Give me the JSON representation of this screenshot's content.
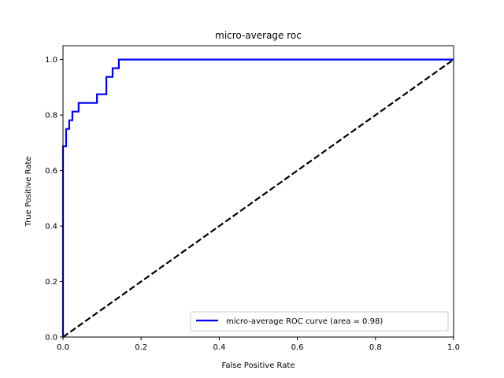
{
  "chart_data": {
    "type": "line",
    "title": "micro-average roc",
    "xlabel": "False Positive Rate",
    "ylabel": "True Positive Rate",
    "xlim": [
      0.0,
      1.0
    ],
    "ylim": [
      0.0,
      1.05
    ],
    "x_ticks": [
      0.0,
      0.2,
      0.4,
      0.6,
      0.8,
      1.0
    ],
    "x_tick_labels": [
      "0.0",
      "0.2",
      "0.4",
      "0.6",
      "0.8",
      "1.0"
    ],
    "y_ticks": [
      0.0,
      0.2,
      0.4,
      0.6,
      0.8,
      1.0
    ],
    "y_tick_labels": [
      "0.0",
      "0.2",
      "0.4",
      "0.6",
      "0.8",
      "1.0"
    ],
    "grid": false,
    "legend_position": "lower right",
    "series": [
      {
        "name": "micro-average ROC curve (area = 0.98)",
        "color": "#0000ff",
        "style": "solid",
        "points": [
          [
            0.0,
            0.0
          ],
          [
            0.0,
            0.6875
          ],
          [
            0.008,
            0.6875
          ],
          [
            0.008,
            0.75
          ],
          [
            0.016,
            0.75
          ],
          [
            0.016,
            0.78125
          ],
          [
            0.024,
            0.78125
          ],
          [
            0.024,
            0.8125
          ],
          [
            0.04,
            0.8125
          ],
          [
            0.04,
            0.84375
          ],
          [
            0.087,
            0.84375
          ],
          [
            0.087,
            0.875
          ],
          [
            0.111,
            0.875
          ],
          [
            0.111,
            0.9375
          ],
          [
            0.127,
            0.9375
          ],
          [
            0.127,
            0.96875
          ],
          [
            0.143,
            0.96875
          ],
          [
            0.143,
            1.0
          ],
          [
            1.0,
            1.0
          ]
        ]
      },
      {
        "name": "",
        "color": "#000000",
        "style": "dashed",
        "points": [
          [
            0.0,
            0.0
          ],
          [
            1.0,
            1.0
          ]
        ]
      }
    ]
  }
}
